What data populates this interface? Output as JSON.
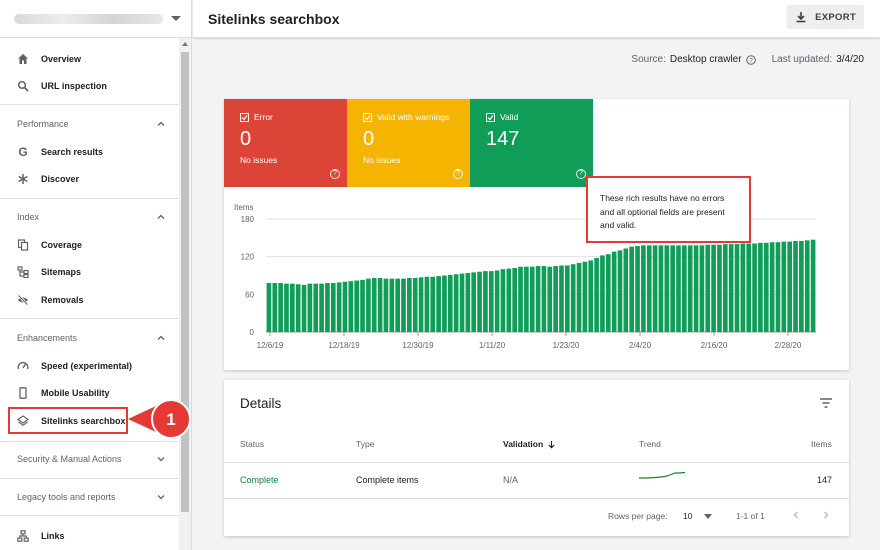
{
  "sidebar": {
    "items": [
      {
        "label": "Overview",
        "icon": "home-icon"
      },
      {
        "label": "URL inspection",
        "icon": "search-icon"
      },
      {
        "label": "Search results",
        "icon": "google-g-icon"
      },
      {
        "label": "Discover",
        "icon": "asterisk-icon"
      },
      {
        "label": "Coverage",
        "icon": "copy-pages-icon"
      },
      {
        "label": "Sitemaps",
        "icon": "sitemap-icon"
      },
      {
        "label": "Removals",
        "icon": "eye-off-icon"
      },
      {
        "label": "Speed (experimental)",
        "icon": "speedometer-icon"
      },
      {
        "label": "Mobile Usability",
        "icon": "smartphone-icon"
      },
      {
        "label": "Sitelinks searchbox",
        "icon": "layers-icon"
      },
      {
        "label": "Links",
        "icon": "links-icon"
      }
    ],
    "sections": {
      "performance": "Performance",
      "index": "Index",
      "enhancements": "Enhancements",
      "security": "Security & Manual Actions",
      "legacy": "Legacy tools and reports"
    },
    "callout_number": "1",
    "highlight_color": "#e53935"
  },
  "header": {
    "title": "Sitelinks searchbox",
    "export_label": "EXPORT"
  },
  "source": {
    "source_label": "Source:",
    "source_value": "Desktop crawler",
    "updated_label": "Last updated:",
    "updated_value": "3/4/20"
  },
  "tiles": [
    {
      "label": "Error",
      "count": "0",
      "sub": "No issues",
      "color": "#db4437"
    },
    {
      "label": "Valid with warnings",
      "count": "0",
      "sub": "No issues",
      "color": "#f4b400"
    },
    {
      "label": "Valid",
      "count": "147",
      "sub": "",
      "color": "#0f9d58"
    }
  ],
  "tooltip": {
    "text_line1": "These rich results have no errors",
    "text_line2": "and all optional fields are present",
    "text_line3": "and valid."
  },
  "chart_data": {
    "type": "bar",
    "ylabel": "Items",
    "ylim": [
      0,
      180
    ],
    "yticks": [
      "0",
      "60",
      "120",
      "180"
    ],
    "xtick_labels": [
      "12/6/19",
      "12/18/19",
      "12/30/19",
      "1/11/20",
      "1/23/20",
      "2/4/20",
      "2/16/20",
      "2/28/20"
    ],
    "bar_color": "#0f9d58",
    "values": [
      78,
      78,
      78,
      77,
      77,
      76,
      75,
      77,
      77,
      77,
      78,
      78,
      79,
      80,
      81,
      82,
      83,
      85,
      86,
      86,
      85,
      85,
      85,
      85,
      86,
      86,
      87,
      88,
      88,
      89,
      90,
      91,
      92,
      93,
      94,
      95,
      96,
      97,
      97,
      98,
      100,
      101,
      102,
      104,
      104,
      104,
      105,
      105,
      104,
      105,
      106,
      106,
      108,
      110,
      112,
      114,
      118,
      122,
      124,
      128,
      130,
      133,
      136,
      137,
      138,
      138,
      138,
      138,
      138,
      138,
      138,
      138,
      138,
      138,
      138,
      139,
      139,
      139,
      140,
      140,
      140,
      141,
      141,
      141,
      142,
      142,
      143,
      143,
      144,
      144,
      145,
      145,
      146,
      147
    ]
  },
  "details": {
    "title": "Details",
    "columns": {
      "status": "Status",
      "type": "Type",
      "validation": "Validation",
      "trend": "Trend",
      "items": "Items"
    },
    "row": {
      "status": "Complete",
      "type": "Complete items",
      "validation": "N/A",
      "items": "147"
    },
    "pagination": {
      "rows_label": "Rows per page:",
      "rows_value": "10",
      "range": "1-1 of 1"
    }
  }
}
